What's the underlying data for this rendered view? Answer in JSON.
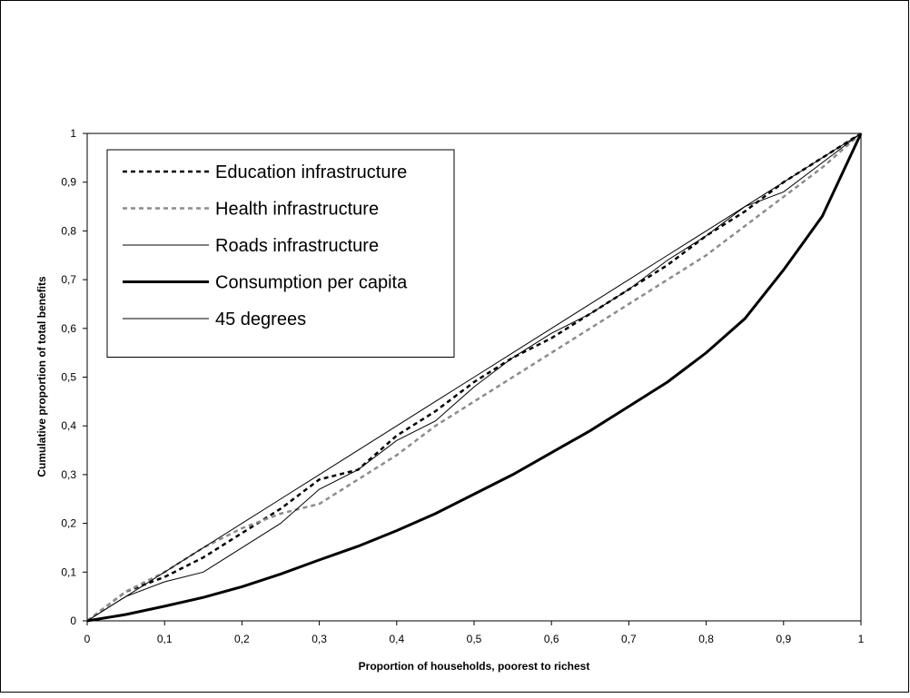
{
  "chart_data": {
    "type": "line",
    "xlabel": "Proportion of households, poorest to richest",
    "ylabel": "Cumulative proportion of total benefits",
    "x": [
      0,
      0.05,
      0.1,
      0.15,
      0.2,
      0.25,
      0.3,
      0.35,
      0.4,
      0.45,
      0.5,
      0.55,
      0.6,
      0.65,
      0.7,
      0.75,
      0.8,
      0.85,
      0.9,
      0.95,
      1
    ],
    "series": [
      {
        "name": "Education infrastructure",
        "color": "#000000",
        "line_style": "dashed",
        "line_width": 2.5,
        "values": [
          0,
          0.06,
          0.09,
          0.13,
          0.18,
          0.23,
          0.29,
          0.31,
          0.38,
          0.43,
          0.49,
          0.54,
          0.58,
          0.63,
          0.68,
          0.73,
          0.79,
          0.84,
          0.9,
          0.95,
          1
        ]
      },
      {
        "name": "Health infrastructure",
        "color": "#8c8c8c",
        "line_style": "dashed",
        "line_width": 2.5,
        "values": [
          0,
          0.06,
          0.1,
          0.15,
          0.19,
          0.22,
          0.24,
          0.29,
          0.34,
          0.4,
          0.45,
          0.5,
          0.55,
          0.6,
          0.65,
          0.7,
          0.75,
          0.81,
          0.87,
          0.93,
          1
        ]
      },
      {
        "name": "Roads infrastructure",
        "color": "#000000",
        "line_style": "solid",
        "line_width": 1,
        "values": [
          0,
          0.05,
          0.08,
          0.1,
          0.15,
          0.2,
          0.27,
          0.31,
          0.37,
          0.41,
          0.48,
          0.54,
          0.59,
          0.63,
          0.68,
          0.74,
          0.79,
          0.85,
          0.88,
          0.94,
          1
        ]
      },
      {
        "name": "Consumption per capita",
        "color": "#000000",
        "line_style": "solid",
        "line_width": 3,
        "values": [
          0,
          0.013,
          0.03,
          0.048,
          0.07,
          0.096,
          0.125,
          0.153,
          0.185,
          0.22,
          0.26,
          0.3,
          0.345,
          0.39,
          0.44,
          0.49,
          0.55,
          0.62,
          0.72,
          0.83,
          1
        ]
      },
      {
        "name": "45 degrees",
        "color": "#000000",
        "line_style": "solid",
        "line_width": 1,
        "values": [
          0,
          0.05,
          0.1,
          0.15,
          0.2,
          0.25,
          0.3,
          0.35,
          0.4,
          0.45,
          0.5,
          0.55,
          0.6,
          0.65,
          0.7,
          0.75,
          0.8,
          0.85,
          0.9,
          0.95,
          1
        ]
      }
    ],
    "xlim": [
      0,
      1
    ],
    "ylim": [
      0,
      1
    ],
    "xticks": [
      0,
      {
        "value": 0.1,
        "label": "0,1"
      },
      {
        "value": 0.2,
        "label": "0,2"
      },
      {
        "value": 0.3,
        "label": "0,3"
      },
      {
        "value": 0.4,
        "label": "0,4"
      },
      {
        "value": 0.5,
        "label": "0,5"
      },
      {
        "value": 0.6,
        "label": "0,6"
      },
      {
        "value": 0.7,
        "label": "0,7"
      },
      {
        "value": 0.8,
        "label": "0,8"
      },
      {
        "value": 0.9,
        "label": "0,9"
      },
      1
    ],
    "yticks": [
      0,
      {
        "value": 0.1,
        "label": "0,1"
      },
      {
        "value": 0.2,
        "label": "0,2"
      },
      {
        "value": 0.3,
        "label": "0,3"
      },
      {
        "value": 0.4,
        "label": "0,4"
      },
      {
        "value": 0.5,
        "label": "0,5"
      },
      {
        "value": 0.6,
        "label": "0,6"
      },
      {
        "value": 0.7,
        "label": "0,7"
      },
      {
        "value": 0.8,
        "label": "0,8"
      },
      {
        "value": 0.9,
        "label": "0,9"
      },
      1
    ],
    "grid": false,
    "legend": "upper left"
  }
}
